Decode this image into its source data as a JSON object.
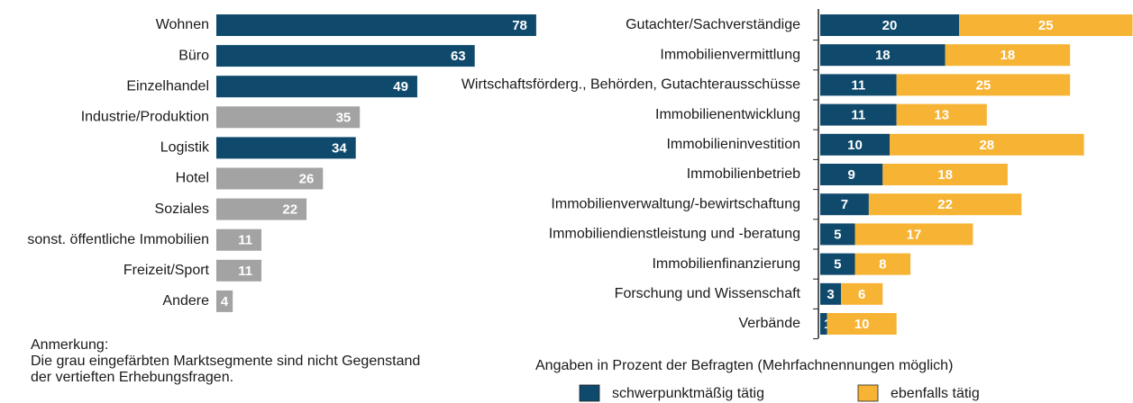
{
  "chart_data": [
    {
      "type": "hbar",
      "categories": [
        "Wohnen",
        "Büro",
        "Einzelhandel",
        "Industrie/Produktion",
        "Logistik",
        "Hotel",
        "Soziales",
        "sonst. öffentliche Immobilien",
        "Freizeit/Sport",
        "Andere"
      ],
      "values": [
        78,
        63,
        49,
        35,
        34,
        26,
        22,
        11,
        11,
        4
      ],
      "colors": [
        "#0f4a6d",
        "#0f4a6d",
        "#0f4a6d",
        "#a3a3a3",
        "#0f4a6d",
        "#a3a3a3",
        "#a3a3a3",
        "#a3a3a3",
        "#a3a3a3",
        "#a3a3a3"
      ]
    },
    {
      "type": "stacked_hbar",
      "caption": "Angaben in Prozent der Befragten (Mehrfachnennungen möglich)",
      "categories": [
        "Gutachter/Sachverständige",
        "Immobilienvermittlung",
        "Wirtschaftsförderg., Behörden, Gutachterausschüsse",
        "Immobilienentwicklung",
        "Immobilieninvestition",
        "Immobilienbetrieb",
        "Immobilienverwaltung/-bewirtschaftung",
        "Immobiliendienstleistung und -beratung",
        "Immobilienfinanzierung",
        "Forschung und Wissenschaft",
        "Verbände"
      ],
      "series": [
        {
          "name": "schwerpunktmäßig tätig",
          "color": "#0f4a6d",
          "values": [
            20,
            18,
            11,
            11,
            10,
            9,
            7,
            5,
            5,
            3,
            1
          ]
        },
        {
          "name": "ebenfalls tätig",
          "color": "#f7b334",
          "values": [
            25,
            18,
            25,
            13,
            28,
            18,
            22,
            17,
            8,
            6,
            10
          ]
        }
      ]
    }
  ],
  "note": {
    "heading": "Anmerkung:",
    "lines": [
      "Die grau eingefärbten Marktsegmente sind nicht Gegenstand",
      "der vertieften Erhebungsfragen."
    ]
  }
}
